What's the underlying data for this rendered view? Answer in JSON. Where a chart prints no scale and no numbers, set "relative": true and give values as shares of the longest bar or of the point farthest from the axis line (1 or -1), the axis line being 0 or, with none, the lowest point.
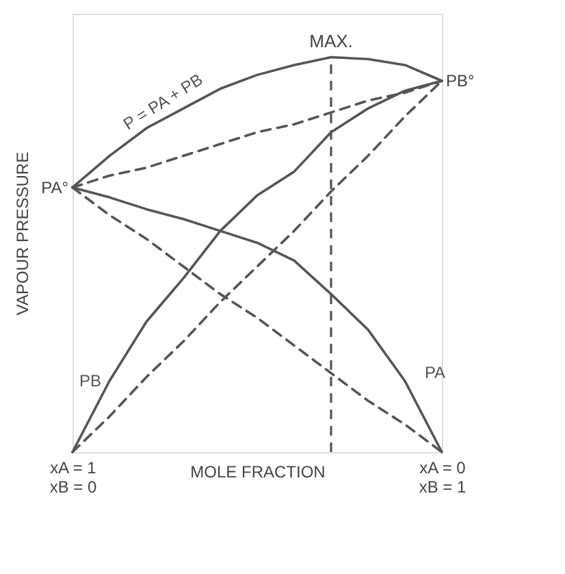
{
  "chart_data": {
    "type": "line",
    "relative": true,
    "xlabel": "MOLE FRACTION",
    "ylabel": "VAPOUR PRESSURE",
    "categories": [
      "xA = 1\nxB = 0",
      null,
      null,
      null,
      null,
      null,
      null,
      null,
      null,
      null,
      "xA = 0\nxB = 1"
    ],
    "marker": "none",
    "series": [
      {
        "name": "P = PA + PB",
        "color": "#555555",
        "line_style": "solid",
        "values": [
          0.67,
          0.75,
          0.82,
          0.87,
          0.92,
          0.955,
          0.98,
          1.0,
          0.995,
          0.98,
          0.94
        ]
      },
      {
        "name": "PA",
        "color": "#555555",
        "line_style": "solid",
        "values": [
          0.67,
          0.645,
          0.615,
          0.59,
          0.56,
          0.53,
          0.485,
          0.4,
          0.31,
          0.18,
          0
        ]
      },
      {
        "name": "PB",
        "color": "#555555",
        "line_style": "solid",
        "values": [
          0,
          0.18,
          0.33,
          0.44,
          0.56,
          0.65,
          0.71,
          0.81,
          0.87,
          0.915,
          0.94
        ]
      },
      {
        "color": "#555555",
        "line_style": "dashed",
        "values": [
          0.67,
          0.6,
          0.54,
          0.47,
          0.4,
          0.34,
          0.27,
          0.2,
          0.13,
          0.07,
          0
        ]
      },
      {
        "color": "#555555",
        "line_style": "dashed",
        "values": [
          0,
          0.09,
          0.19,
          0.28,
          0.38,
          0.47,
          0.56,
          0.66,
          0.75,
          0.85,
          0.94
        ]
      },
      {
        "color": "#555555",
        "line_style": "dashed",
        "values": [
          0.67,
          0.7,
          0.72,
          0.75,
          0.78,
          0.81,
          0.83,
          0.86,
          0.89,
          0.91,
          0.94
        ]
      }
    ],
    "ref_lines": [
      {
        "axis": "x",
        "value": null,
        "label": "MAX.",
        "color": "#555555",
        "line_style": "dashed"
      }
    ],
    "annotations": [
      "PA°",
      "PB°"
    ]
  }
}
